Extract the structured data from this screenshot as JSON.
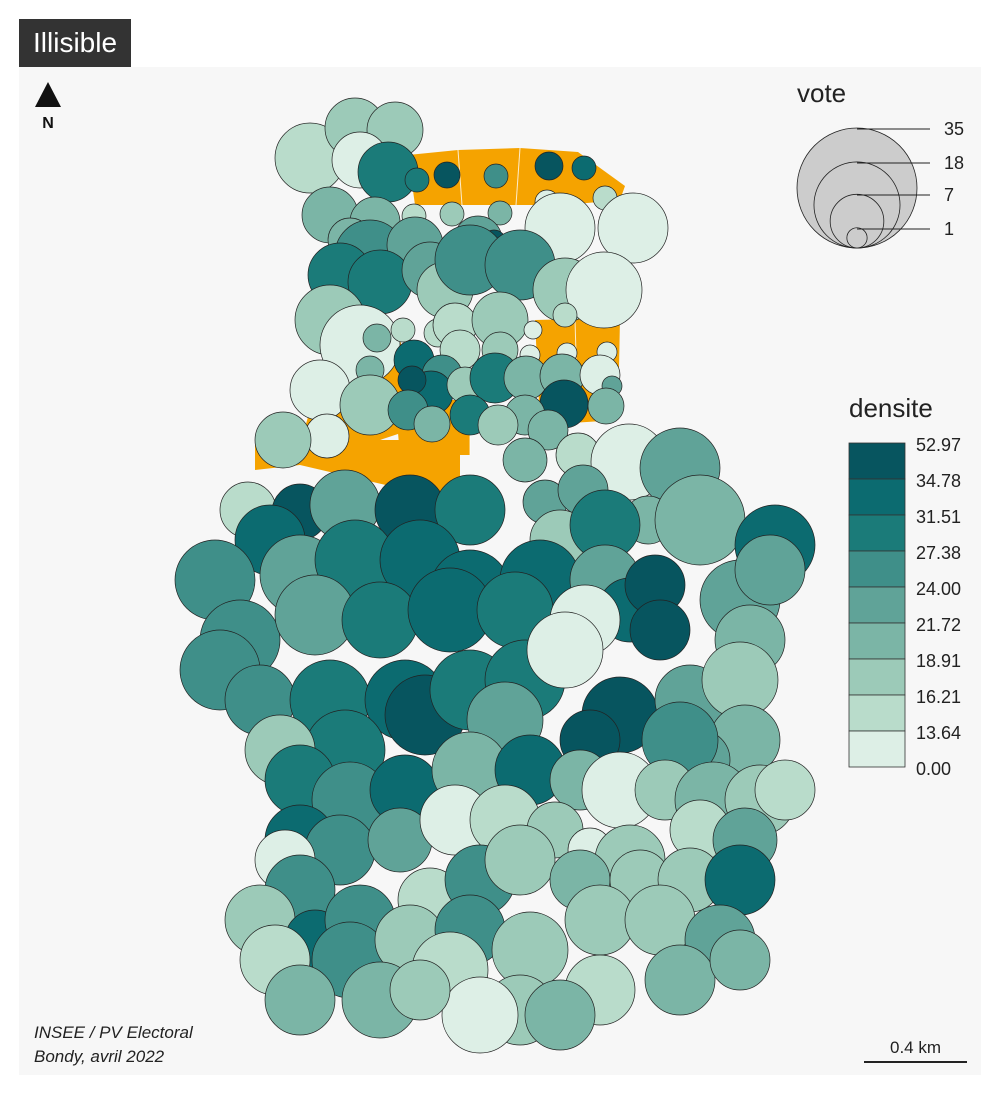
{
  "title": "Illisible",
  "north_label": "N",
  "source_line1": "INSEE / PV Electoral",
  "source_line2": "Bondy, avril 2022",
  "scale_label": "0.4 km",
  "colors": {
    "background": "#f7f7f7",
    "highlight_area": "#f5a300",
    "circle_stroke": "#222222",
    "title_bg": "#333333"
  },
  "legend_vote": {
    "title": "vote",
    "values": [
      "35",
      "18",
      "7",
      "1"
    ]
  },
  "legend_densite": {
    "title": "densite",
    "breaks": [
      "52.97",
      "34.78",
      "31.51",
      "27.38",
      "24.00",
      "21.72",
      "18.91",
      "16.21",
      "13.64",
      "0.00"
    ],
    "colors": [
      "#07555f",
      "#0c6b70",
      "#1b7b79",
      "#3f8f89",
      "#60a398",
      "#7bb5a6",
      "#9ccab8",
      "#b9dccb",
      "#ddefe6"
    ]
  }
}
